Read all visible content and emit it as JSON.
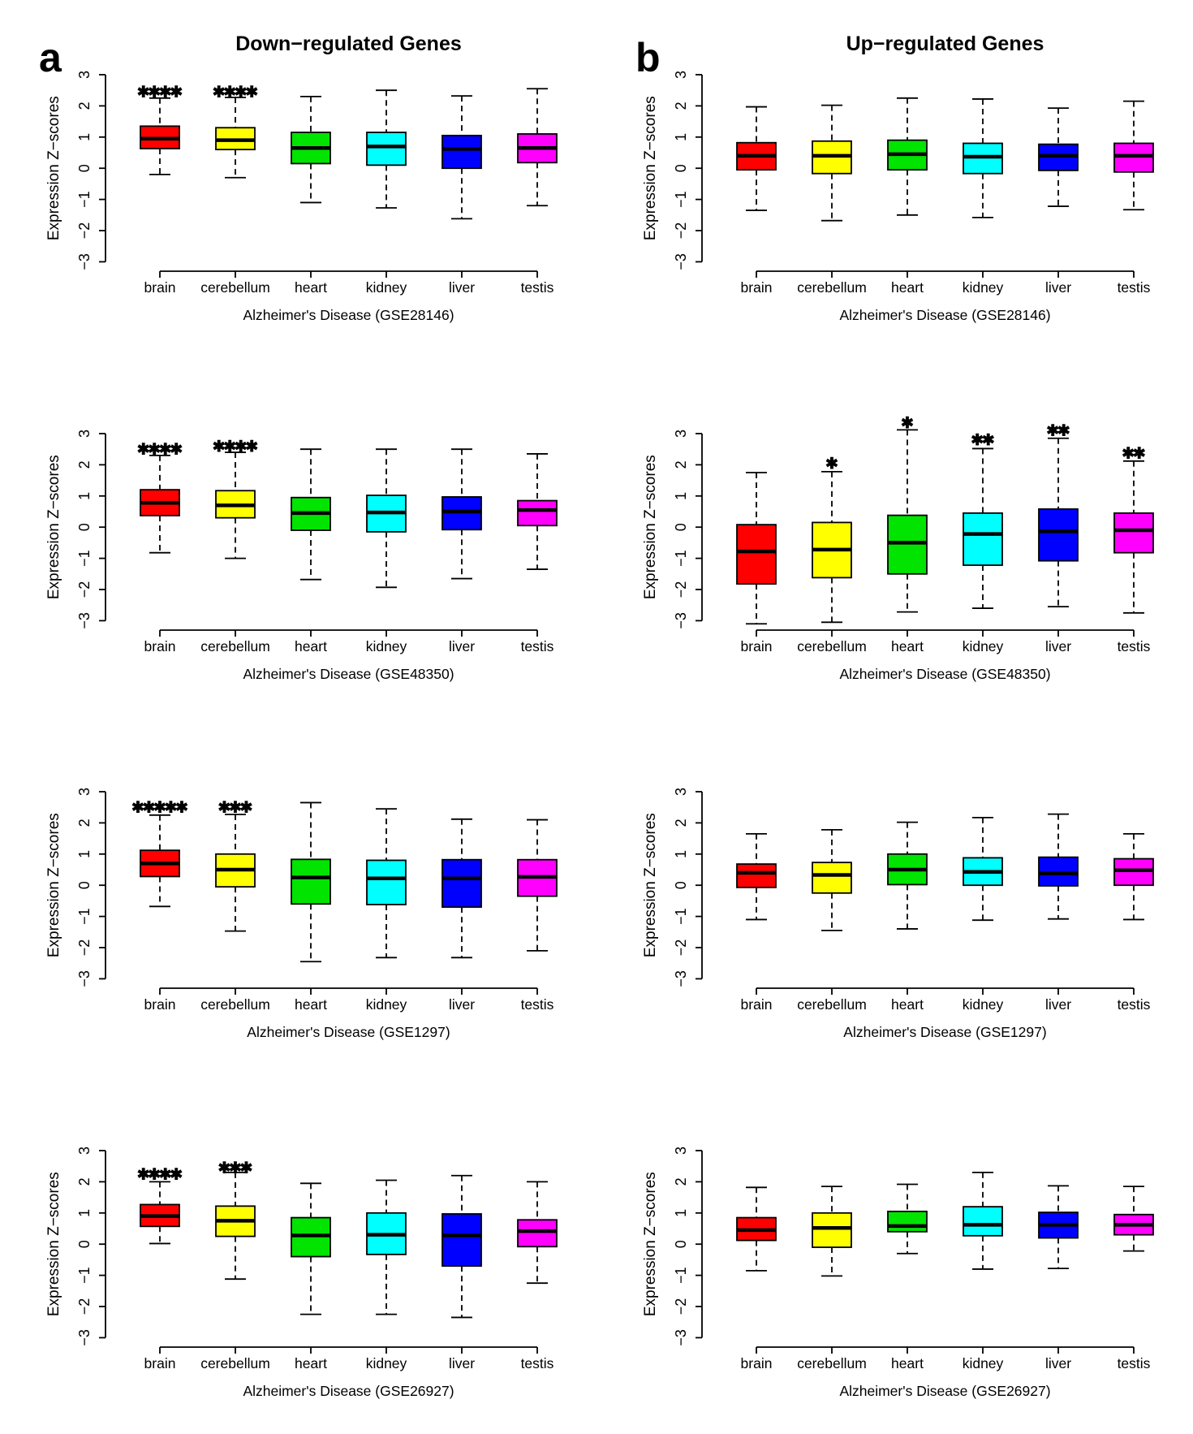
{
  "figure": {
    "corner_label_a": "a",
    "corner_label_b": "b",
    "title_down": "Down−regulated Genes",
    "title_up": "Up−regulated Genes",
    "ylabel": "Expression Z−scores",
    "y_ticks": [
      3,
      2,
      1,
      0,
      -1,
      -2,
      -3
    ],
    "tissues": [
      "brain",
      "cerebellum",
      "heart",
      "kidney",
      "liver",
      "testis"
    ],
    "tissue_colors": {
      "brain": "#FF0000",
      "cerebellum": "#FFFF00",
      "heart": "#00E400",
      "kidney": "#00FFFF",
      "liver": "#0000FF",
      "testis": "#FF00FF"
    },
    "star_glyph": "✱",
    "star_outline_color": "#000000"
  },
  "chart_data": {
    "type": "boxplot",
    "grid": {
      "rows": 4,
      "cols": 2
    },
    "ylabel": "Expression Z−scores",
    "ylim": [
      -3,
      3
    ],
    "categories": [
      "brain",
      "cerebellum",
      "heart",
      "kidney",
      "liver",
      "testis"
    ],
    "panels": [
      {
        "id": "down-GSE28146",
        "row": 0,
        "col": 0,
        "corner_label": "a",
        "title": "Down−regulated Genes",
        "xlabel": "Alzheimer's Disease (GSE28146)",
        "boxes": [
          {
            "tissue": "brain",
            "color": "#FF0000",
            "whisker_low": -0.2,
            "q1": 0.63,
            "median": 0.95,
            "q3": 1.35,
            "whisker_high": 2.25,
            "stars": {
              "y": 2.45,
              "colors": [
                "#00E400",
                "#00FFFF",
                "#0000FF",
                "#FF00FF"
              ]
            }
          },
          {
            "tissue": "cerebellum",
            "color": "#FFFF00",
            "whisker_low": -0.3,
            "q1": 0.6,
            "median": 0.9,
            "q3": 1.3,
            "whisker_high": 2.27,
            "stars": {
              "y": 2.45,
              "colors": [
                "#00E400",
                "#00FFFF",
                "#0000FF",
                "#FF00FF"
              ]
            }
          },
          {
            "tissue": "heart",
            "color": "#00E400",
            "whisker_low": -1.1,
            "q1": 0.15,
            "median": 0.65,
            "q3": 1.15,
            "whisker_high": 2.3
          },
          {
            "tissue": "kidney",
            "color": "#00FFFF",
            "whisker_low": -1.27,
            "q1": 0.1,
            "median": 0.7,
            "q3": 1.15,
            "whisker_high": 2.5
          },
          {
            "tissue": "liver",
            "color": "#0000FF",
            "whisker_low": -1.62,
            "q1": 0.0,
            "median": 0.62,
            "q3": 1.05,
            "whisker_high": 2.32
          },
          {
            "tissue": "testis",
            "color": "#FF00FF",
            "whisker_low": -1.2,
            "q1": 0.18,
            "median": 0.65,
            "q3": 1.1,
            "whisker_high": 2.55
          }
        ]
      },
      {
        "id": "up-GSE28146",
        "row": 0,
        "col": 1,
        "corner_label": "b",
        "title": "Up−regulated Genes",
        "xlabel": "Alzheimer's Disease (GSE28146)",
        "boxes": [
          {
            "tissue": "brain",
            "color": "#FF0000",
            "whisker_low": -1.35,
            "q1": -0.05,
            "median": 0.4,
            "q3": 0.82,
            "whisker_high": 1.97
          },
          {
            "tissue": "cerebellum",
            "color": "#FFFF00",
            "whisker_low": -1.68,
            "q1": -0.17,
            "median": 0.4,
            "q3": 0.87,
            "whisker_high": 2.02
          },
          {
            "tissue": "heart",
            "color": "#00E400",
            "whisker_low": -1.5,
            "q1": -0.05,
            "median": 0.45,
            "q3": 0.9,
            "whisker_high": 2.25
          },
          {
            "tissue": "kidney",
            "color": "#00FFFF",
            "whisker_low": -1.58,
            "q1": -0.17,
            "median": 0.37,
            "q3": 0.8,
            "whisker_high": 2.22
          },
          {
            "tissue": "liver",
            "color": "#0000FF",
            "whisker_low": -1.22,
            "q1": -0.07,
            "median": 0.4,
            "q3": 0.77,
            "whisker_high": 1.93
          },
          {
            "tissue": "testis",
            "color": "#FF00FF",
            "whisker_low": -1.33,
            "q1": -0.12,
            "median": 0.4,
            "q3": 0.8,
            "whisker_high": 2.15
          }
        ]
      },
      {
        "id": "down-GSE48350",
        "row": 1,
        "col": 0,
        "xlabel": "Alzheimer's Disease (GSE48350)",
        "boxes": [
          {
            "tissue": "brain",
            "color": "#FF0000",
            "whisker_low": -0.82,
            "q1": 0.37,
            "median": 0.78,
            "q3": 1.2,
            "whisker_high": 2.3,
            "stars": {
              "y": 2.5,
              "colors": [
                "#00E400",
                "#00FFFF",
                "#0000FF",
                "#FF00FF"
              ]
            }
          },
          {
            "tissue": "cerebellum",
            "color": "#FFFF00",
            "whisker_low": -1.0,
            "q1": 0.3,
            "median": 0.7,
            "q3": 1.17,
            "whisker_high": 2.4,
            "stars": {
              "y": 2.6,
              "colors": [
                "#00E400",
                "#00FFFF",
                "#0000FF",
                "#FF00FF"
              ]
            }
          },
          {
            "tissue": "heart",
            "color": "#00E400",
            "whisker_low": -1.68,
            "q1": -0.1,
            "median": 0.45,
            "q3": 0.95,
            "whisker_high": 2.5
          },
          {
            "tissue": "kidney",
            "color": "#00FFFF",
            "whisker_low": -1.93,
            "q1": -0.15,
            "median": 0.47,
            "q3": 1.02,
            "whisker_high": 2.5
          },
          {
            "tissue": "liver",
            "color": "#0000FF",
            "whisker_low": -1.65,
            "q1": -0.08,
            "median": 0.5,
            "q3": 0.97,
            "whisker_high": 2.5
          },
          {
            "tissue": "testis",
            "color": "#FF00FF",
            "whisker_low": -1.35,
            "q1": 0.05,
            "median": 0.55,
            "q3": 0.85,
            "whisker_high": 2.35
          }
        ]
      },
      {
        "id": "up-GSE48350",
        "row": 1,
        "col": 1,
        "xlabel": "Alzheimer's Disease (GSE48350)",
        "boxes": [
          {
            "tissue": "brain",
            "color": "#FF0000",
            "whisker_low": -3.1,
            "q1": -1.82,
            "median": -0.78,
            "q3": 0.08,
            "whisker_high": 1.75
          },
          {
            "tissue": "cerebellum",
            "color": "#FFFF00",
            "whisker_low": -3.05,
            "q1": -1.62,
            "median": -0.72,
            "q3": 0.15,
            "whisker_high": 1.78,
            "stars": {
              "y": 2.05,
              "colors": [
                "#FF0000"
              ]
            }
          },
          {
            "tissue": "heart",
            "color": "#00E400",
            "whisker_low": -2.72,
            "q1": -1.5,
            "median": -0.5,
            "q3": 0.38,
            "whisker_high": 3.12,
            "stars": {
              "y": 3.35,
              "colors": [
                "#FF0000"
              ]
            }
          },
          {
            "tissue": "kidney",
            "color": "#00FFFF",
            "whisker_low": -2.6,
            "q1": -1.22,
            "median": -0.22,
            "q3": 0.45,
            "whisker_high": 2.52,
            "stars": {
              "y": 2.8,
              "colors": [
                "#FF0000",
                "#FFFF00"
              ]
            }
          },
          {
            "tissue": "liver",
            "color": "#0000FF",
            "whisker_low": -2.55,
            "q1": -1.08,
            "median": -0.13,
            "q3": 0.58,
            "whisker_high": 2.85,
            "stars": {
              "y": 3.1,
              "colors": [
                "#FF0000",
                "#FFFF00"
              ]
            }
          },
          {
            "tissue": "testis",
            "color": "#FF00FF",
            "whisker_low": -2.75,
            "q1": -0.82,
            "median": -0.1,
            "q3": 0.45,
            "whisker_high": 2.12,
            "stars": {
              "y": 2.38,
              "colors": [
                "#FF0000",
                "#FFFF00"
              ]
            }
          }
        ]
      },
      {
        "id": "down-GSE1297",
        "row": 2,
        "col": 0,
        "xlabel": "Alzheimer's Disease (GSE1297)",
        "boxes": [
          {
            "tissue": "brain",
            "color": "#FF0000",
            "whisker_low": -0.68,
            "q1": 0.28,
            "median": 0.7,
            "q3": 1.12,
            "whisker_high": 2.25,
            "stars": {
              "y": 2.5,
              "colors": [
                "#FFFF00",
                "#00E400",
                "#00FFFF",
                "#0000FF",
                "#FF00FF"
              ]
            }
          },
          {
            "tissue": "cerebellum",
            "color": "#FFFF00",
            "whisker_low": -1.47,
            "q1": -0.05,
            "median": 0.5,
            "q3": 1.0,
            "whisker_high": 2.27,
            "stars": {
              "y": 2.5,
              "colors": [
                "#00E400",
                "#00FFFF",
                "#0000FF"
              ]
            }
          },
          {
            "tissue": "heart",
            "color": "#00E400",
            "whisker_low": -2.45,
            "q1": -0.6,
            "median": 0.25,
            "q3": 0.83,
            "whisker_high": 2.65
          },
          {
            "tissue": "kidney",
            "color": "#00FFFF",
            "whisker_low": -2.32,
            "q1": -0.62,
            "median": 0.22,
            "q3": 0.8,
            "whisker_high": 2.45
          },
          {
            "tissue": "liver",
            "color": "#0000FF",
            "whisker_low": -2.32,
            "q1": -0.7,
            "median": 0.22,
            "q3": 0.82,
            "whisker_high": 2.12
          },
          {
            "tissue": "testis",
            "color": "#FF00FF",
            "whisker_low": -2.1,
            "q1": -0.35,
            "median": 0.27,
            "q3": 0.82,
            "whisker_high": 2.1
          }
        ]
      },
      {
        "id": "up-GSE1297",
        "row": 2,
        "col": 1,
        "xlabel": "Alzheimer's Disease (GSE1297)",
        "boxes": [
          {
            "tissue": "brain",
            "color": "#FF0000",
            "whisker_low": -1.1,
            "q1": -0.07,
            "median": 0.4,
            "q3": 0.68,
            "whisker_high": 1.65
          },
          {
            "tissue": "cerebellum",
            "color": "#FFFF00",
            "whisker_low": -1.45,
            "q1": -0.25,
            "median": 0.33,
            "q3": 0.73,
            "whisker_high": 1.78
          },
          {
            "tissue": "heart",
            "color": "#00E400",
            "whisker_low": -1.4,
            "q1": 0.02,
            "median": 0.5,
            "q3": 1.0,
            "whisker_high": 2.02
          },
          {
            "tissue": "kidney",
            "color": "#00FFFF",
            "whisker_low": -1.12,
            "q1": 0.0,
            "median": 0.43,
            "q3": 0.88,
            "whisker_high": 2.17
          },
          {
            "tissue": "liver",
            "color": "#0000FF",
            "whisker_low": -1.08,
            "q1": -0.02,
            "median": 0.38,
            "q3": 0.9,
            "whisker_high": 2.28
          },
          {
            "tissue": "testis",
            "color": "#FF00FF",
            "whisker_low": -1.1,
            "q1": 0.0,
            "median": 0.48,
            "q3": 0.85,
            "whisker_high": 1.65
          }
        ]
      },
      {
        "id": "down-GSE26927",
        "row": 3,
        "col": 0,
        "xlabel": "Alzheimer's Disease (GSE26927)",
        "boxes": [
          {
            "tissue": "brain",
            "color": "#FF0000",
            "whisker_low": 0.02,
            "q1": 0.57,
            "median": 0.9,
            "q3": 1.27,
            "whisker_high": 2.0,
            "stars": {
              "y": 2.25,
              "colors": [
                "#00E400",
                "#00FFFF",
                "#0000FF",
                "#FF00FF"
              ]
            }
          },
          {
            "tissue": "cerebellum",
            "color": "#FFFF00",
            "whisker_low": -1.12,
            "q1": 0.25,
            "median": 0.75,
            "q3": 1.22,
            "whisker_high": 2.3,
            "stars": {
              "y": 2.45,
              "colors": [
                "#00E400",
                "#00FFFF",
                "#0000FF"
              ]
            }
          },
          {
            "tissue": "heart",
            "color": "#00E400",
            "whisker_low": -2.25,
            "q1": -0.4,
            "median": 0.28,
            "q3": 0.85,
            "whisker_high": 1.95
          },
          {
            "tissue": "kidney",
            "color": "#00FFFF",
            "whisker_low": -2.25,
            "q1": -0.33,
            "median": 0.3,
            "q3": 1.0,
            "whisker_high": 2.05
          },
          {
            "tissue": "liver",
            "color": "#0000FF",
            "whisker_low": -2.35,
            "q1": -0.7,
            "median": 0.28,
            "q3": 0.97,
            "whisker_high": 2.2
          },
          {
            "tissue": "testis",
            "color": "#FF00FF",
            "whisker_low": -1.25,
            "q1": -0.08,
            "median": 0.42,
            "q3": 0.78,
            "whisker_high": 2.0
          }
        ]
      },
      {
        "id": "up-GSE26927",
        "row": 3,
        "col": 1,
        "xlabel": "Alzheimer's Disease (GSE26927)",
        "boxes": [
          {
            "tissue": "brain",
            "color": "#FF0000",
            "whisker_low": -0.85,
            "q1": 0.12,
            "median": 0.45,
            "q3": 0.85,
            "whisker_high": 1.82
          },
          {
            "tissue": "cerebellum",
            "color": "#FFFF00",
            "whisker_low": -1.02,
            "q1": -0.1,
            "median": 0.52,
            "q3": 1.0,
            "whisker_high": 1.85
          },
          {
            "tissue": "heart",
            "color": "#00E400",
            "whisker_low": -0.3,
            "q1": 0.4,
            "median": 0.58,
            "q3": 1.05,
            "whisker_high": 1.92
          },
          {
            "tissue": "kidney",
            "color": "#00FFFF",
            "whisker_low": -0.8,
            "q1": 0.27,
            "median": 0.62,
            "q3": 1.2,
            "whisker_high": 2.3
          },
          {
            "tissue": "liver",
            "color": "#0000FF",
            "whisker_low": -0.78,
            "q1": 0.2,
            "median": 0.62,
            "q3": 1.02,
            "whisker_high": 1.87
          },
          {
            "tissue": "testis",
            "color": "#FF00FF",
            "whisker_low": -0.22,
            "q1": 0.3,
            "median": 0.62,
            "q3": 0.95,
            "whisker_high": 1.85
          }
        ]
      }
    ]
  }
}
